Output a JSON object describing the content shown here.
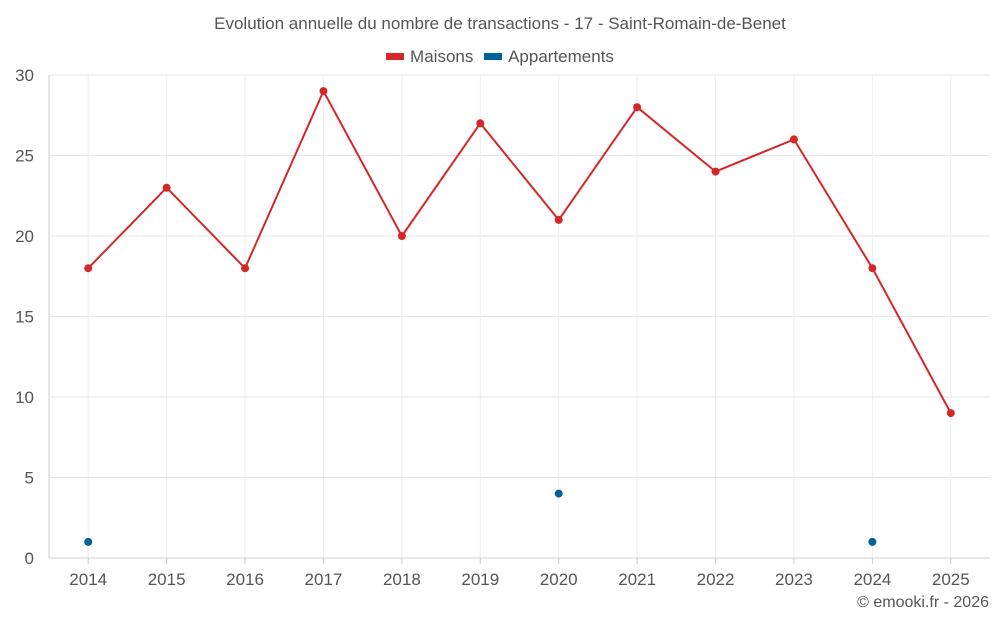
{
  "chart_data": {
    "type": "line",
    "title": "Evolution annuelle du nombre de transactions - 17 - Saint-Romain-de-Benet",
    "categories": [
      "2014",
      "2015",
      "2016",
      "2017",
      "2018",
      "2019",
      "2020",
      "2021",
      "2022",
      "2023",
      "2024",
      "2025"
    ],
    "series": [
      {
        "name": "Maisons",
        "color": "#d62728",
        "values": [
          18,
          23,
          18,
          29,
          20,
          27,
          21,
          28,
          24,
          26,
          18,
          9
        ]
      },
      {
        "name": "Appartements",
        "color": "#00629b",
        "values": [
          1,
          null,
          null,
          null,
          null,
          null,
          4,
          null,
          null,
          null,
          1,
          null
        ]
      }
    ],
    "ylim": [
      0,
      30
    ],
    "yticks": [
      0,
      5,
      10,
      15,
      20,
      25,
      30
    ],
    "grid": true,
    "legend_position": "top-center",
    "xlabel": "",
    "ylabel": ""
  },
  "credit": "© emooki.fr - 2026"
}
